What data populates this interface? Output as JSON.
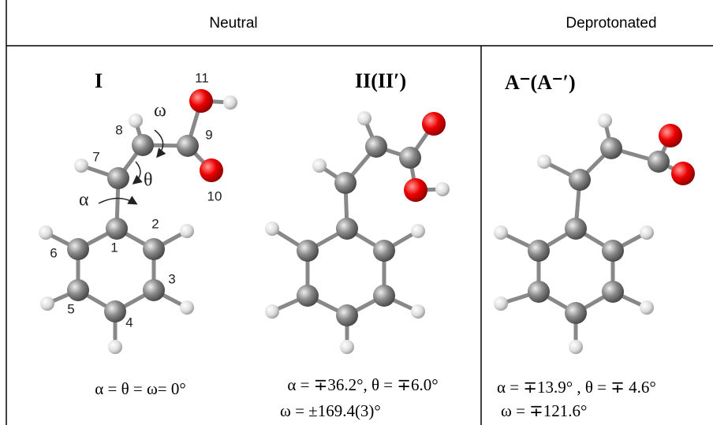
{
  "header": {
    "left": "Neutral",
    "right": "Deprotonated"
  },
  "panels": [
    {
      "label": "I",
      "caption": [
        "α = θ = ω= 0°"
      ],
      "atom_numbers": [
        "1",
        "2",
        "3",
        "4",
        "5",
        "6",
        "7",
        "8",
        "9",
        "10",
        "11"
      ],
      "angles": [
        "α",
        "θ",
        "ω"
      ]
    },
    {
      "label": "II(II′)",
      "caption": [
        "α = ∓36.2°, θ = ∓6.0°",
        "ω = ±169.4(3)°"
      ]
    },
    {
      "label": "A⁻(A⁻′)",
      "caption": [
        "α = ∓13.9° , θ = ∓ 4.6°",
        "ω = ∓121.6°"
      ]
    }
  ]
}
